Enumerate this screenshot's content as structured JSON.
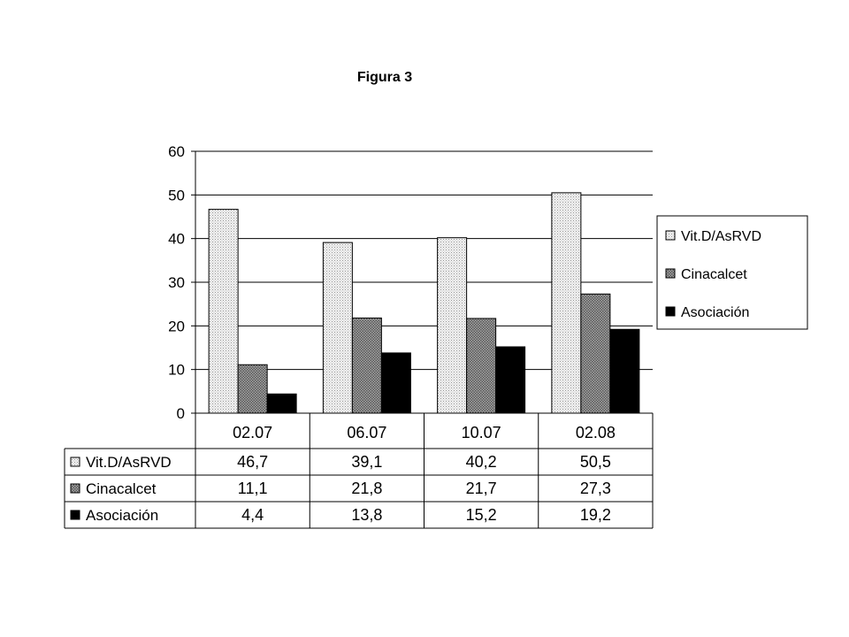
{
  "figure_title": "Figura 3",
  "chart_data": {
    "type": "bar",
    "title": "",
    "xlabel": "",
    "ylabel": "",
    "ylim": [
      0,
      60
    ],
    "yticks": [
      0,
      10,
      20,
      30,
      40,
      50,
      60
    ],
    "categories": [
      "02.07",
      "06.07",
      "10.07",
      "02.08"
    ],
    "grid": "horizontal",
    "legend_position": "right",
    "data_table": true,
    "series": [
      {
        "name": "Vit.D/AsRVD",
        "values": [
          46.7,
          39.1,
          40.2,
          50.5
        ],
        "value_labels": [
          "46,7",
          "39,1",
          "40,2",
          "50,5"
        ],
        "fill": "light-dotted"
      },
      {
        "name": "Cinacalcet",
        "values": [
          11.1,
          21.8,
          21.7,
          27.3
        ],
        "value_labels": [
          "11,1",
          "21,8",
          "21,7",
          "27,3"
        ],
        "fill": "gray-crosshatch"
      },
      {
        "name": "Asociación",
        "values": [
          4.4,
          13.8,
          15.2,
          19.2
        ],
        "value_labels": [
          "4,4",
          "13,8",
          "15,2",
          "19,2"
        ],
        "fill": "black"
      }
    ]
  }
}
